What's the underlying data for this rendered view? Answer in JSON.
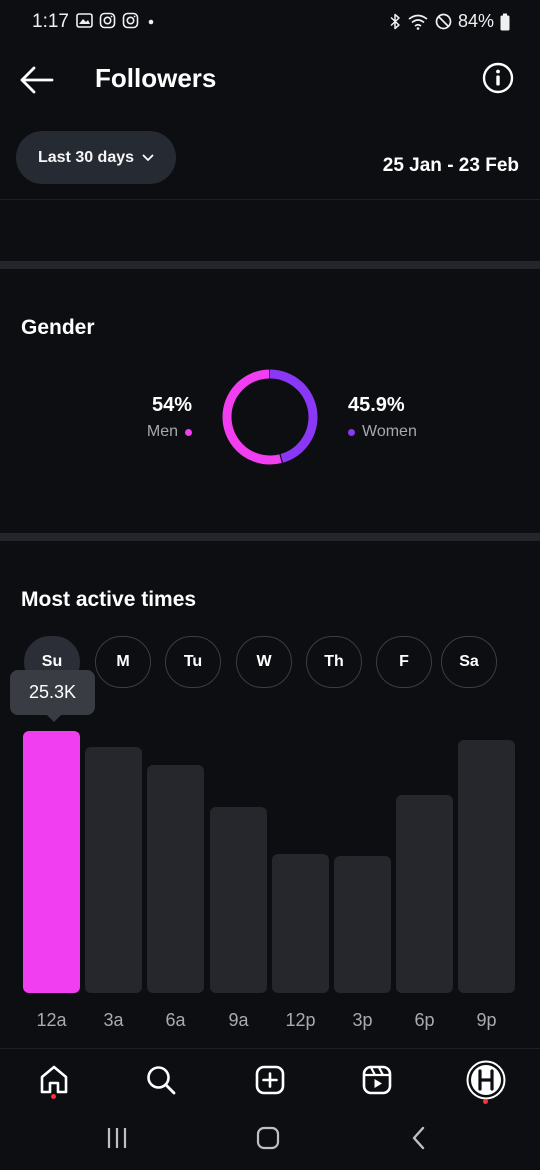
{
  "status_bar": {
    "time": "1:17",
    "battery": "84%"
  },
  "header": {
    "title": "Followers"
  },
  "filter": {
    "range_label": "Last 30 days",
    "date_range": "25 Jan - 23 Feb"
  },
  "gender": {
    "title": "Gender",
    "men": {
      "percent": "54%",
      "label": "Men",
      "value": 54
    },
    "women": {
      "percent": "45.9%",
      "label": "Women",
      "value": 45.9
    }
  },
  "active_times": {
    "title": "Most active times",
    "days": [
      "Su",
      "M",
      "Tu",
      "W",
      "Th",
      "F",
      "Sa"
    ],
    "selected_day": "Su",
    "tooltip": "25.3K"
  },
  "chart_data": {
    "type": "bar",
    "categories": [
      "12a",
      "3a",
      "6a",
      "9a",
      "12p",
      "3p",
      "6p",
      "9p"
    ],
    "values": [
      25.3,
      23.8,
      22.0,
      18.0,
      13.4,
      13.2,
      19.1,
      24.4
    ],
    "active_index": 0,
    "ylim": [
      0,
      25.3
    ]
  },
  "colors": {
    "accent_pink": "#f03ef0",
    "accent_purple": "#8a38f5",
    "bar_inactive": "#26272c",
    "background": "#0d0e12"
  },
  "nav": {
    "items": [
      "home-icon",
      "search-icon",
      "create-icon",
      "reels-icon",
      "profile-avatar"
    ]
  }
}
